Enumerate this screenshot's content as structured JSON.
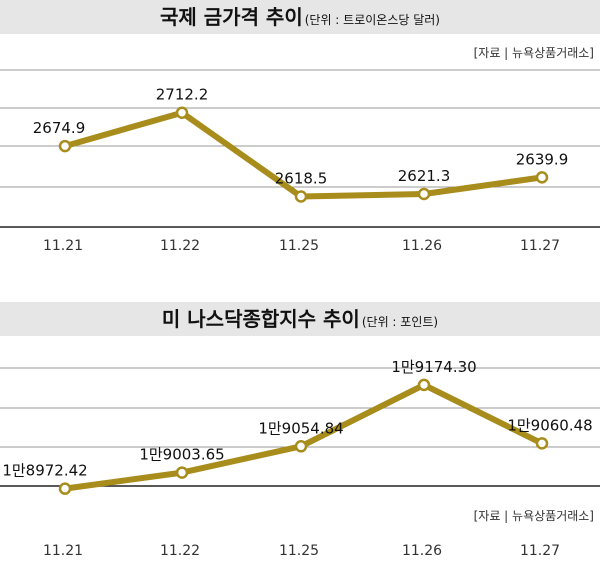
{
  "chart_data": [
    {
      "type": "line",
      "title": "국제 금가격 추이",
      "unit_note": "(단위 : 트로이온스당 달러)",
      "source": "[자료 | 뉴욕상품거래소]",
      "categories": [
        "11.21",
        "11.22",
        "11.25",
        "11.26",
        "11.27"
      ],
      "values": [
        2674.9,
        2712.2,
        2618.5,
        2621.3,
        2639.9
      ],
      "labels": [
        "2674.9",
        "2712.2",
        "2618.5",
        "2621.3",
        "2639.9"
      ],
      "ylim": [
        2590,
        2760
      ],
      "grid": true,
      "line_color": "#a88d1c",
      "marker_fill": "#ffffff"
    },
    {
      "type": "line",
      "title": "미 나스닥종합지수 추이",
      "unit_note": "(단위 : 포인트)",
      "source": "[자료 | 뉴욕상품거래소]",
      "categories": [
        "11.21",
        "11.22",
        "11.25",
        "11.26",
        "11.27"
      ],
      "values": [
        18972.42,
        19003.65,
        19054.84,
        19174.3,
        19060.48
      ],
      "labels": [
        "1만8972.42",
        "1만9003.65",
        "1만9054.84",
        "1만9174.30",
        "1만9060.48"
      ],
      "ylim": [
        18890,
        19250
      ],
      "grid": true,
      "line_color": "#a88d1c",
      "marker_fill": "#ffffff"
    }
  ]
}
